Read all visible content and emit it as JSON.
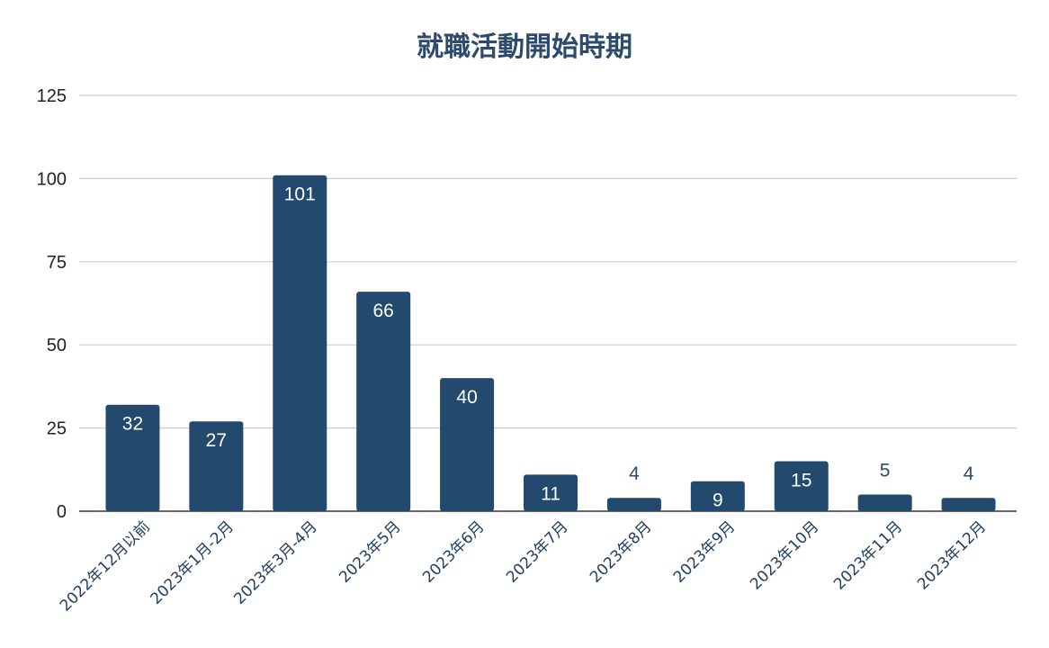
{
  "chart_data": {
    "type": "bar",
    "title": "就職活動開始時期",
    "xlabel": "",
    "ylabel": "",
    "ylim": [
      0,
      125
    ],
    "yticks": [
      0,
      25,
      50,
      75,
      100,
      125
    ],
    "grid": true,
    "legend": "none",
    "bar_color": "#234a6e",
    "categories": [
      "2022年12月以前",
      "2023年1月-2月",
      "2023年3月-4月",
      "2023年5月",
      "2023年6月",
      "2023年7月",
      "2023年8月",
      "2023年9月",
      "2023年10月",
      "2023年11月",
      "2023年12月"
    ],
    "values": [
      32,
      27,
      101,
      66,
      40,
      11,
      4,
      9,
      15,
      5,
      4
    ]
  }
}
